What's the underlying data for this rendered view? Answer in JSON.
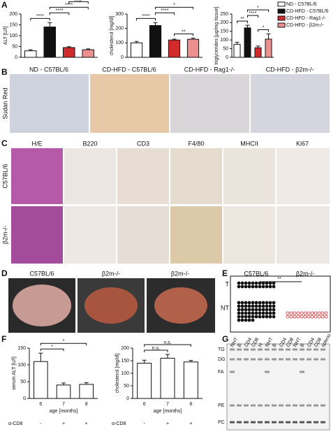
{
  "panels": [
    "A",
    "B",
    "C",
    "D",
    "E",
    "F",
    "G"
  ],
  "panel_b": {
    "labels": [
      "ND - C57BL/6",
      "CD-HFD - C57BL/6",
      "CD-HFD - Rag1-/-",
      "CD-HFD - β2m-/-"
    ],
    "side": "Sudan Red"
  },
  "panel_c": {
    "columns": [
      "H/E",
      "B220",
      "CD3",
      "F4/80",
      "MHCII",
      "Ki67"
    ],
    "rows": [
      "C57BL/6",
      "β2m-/-"
    ]
  },
  "panel_d": {
    "labels": [
      "C57BL/6",
      "β2m-/-",
      "β2m-/-"
    ]
  },
  "panel_g": {
    "lipids": [
      "TG",
      "DG",
      "FA",
      "PE",
      "PC"
    ],
    "lanes": [
      "NHT",
      "B",
      "CD4",
      "CD8",
      "H",
      "NHT",
      "B",
      "CD4",
      "CD8",
      "NHT",
      "B",
      "CD4",
      "CD8",
      "spleno"
    ]
  },
  "chart_data": [
    {
      "type": "bar",
      "ylabel": "ALT [U/l]",
      "values": [
        30,
        140,
        45,
        35
      ],
      "errors": [
        5,
        20,
        4,
        4
      ],
      "colors": [
        "#ffffff",
        "#111111",
        "#d22b2b",
        "#ec8f8f"
      ],
      "ylim": [
        0,
        200
      ],
      "yticks": [
        0,
        50,
        100,
        150,
        200
      ],
      "annotations": [
        {
          "text": "****",
          "between": [
            0,
            1
          ]
        },
        {
          "text": "****",
          "between": [
            1,
            2
          ]
        },
        {
          "text": "****",
          "between": [
            1,
            3
          ]
        },
        {
          "text": "n.s.",
          "between": [
            2,
            3
          ]
        }
      ],
      "legend": [
        {
          "name": "ND - C57BL/6",
          "color": "#ffffff"
        },
        {
          "name": "CD-HFD - C57BL/6",
          "color": "#111111"
        },
        {
          "name": "CD-HFD - Rag1-/-",
          "color": "#d22b2b"
        },
        {
          "name": "CD-HFD - β2m-/-",
          "color": "#ec8f8f"
        }
      ]
    },
    {
      "type": "bar",
      "ylabel": "cholesterol [mg/dl]",
      "values": [
        100,
        220,
        120,
        125
      ],
      "errors": [
        10,
        20,
        6,
        8
      ],
      "colors": [
        "#ffffff",
        "#111111",
        "#d22b2b",
        "#ec8f8f"
      ],
      "ylim": [
        0,
        300
      ],
      "yticks": [
        0,
        100,
        200,
        300
      ],
      "annotations": [
        {
          "text": "**",
          "between": [
            2,
            3
          ]
        },
        {
          "text": "****",
          "between": [
            0,
            1
          ]
        },
        {
          "text": "****",
          "between": [
            1,
            2
          ]
        },
        {
          "text": "*",
          "between": [
            1,
            3
          ]
        }
      ]
    },
    {
      "type": "bar",
      "ylabel": "triglycerides [µg/mg tissue]",
      "values": [
        75,
        170,
        55,
        105
      ],
      "errors": [
        12,
        15,
        10,
        30
      ],
      "colors": [
        "#ffffff",
        "#111111",
        "#d22b2b",
        "#ec8f8f"
      ],
      "ylim": [
        0,
        250
      ],
      "yticks": [
        0,
        50,
        100,
        150,
        200,
        250
      ],
      "annotations": [
        {
          "text": "*",
          "between": [
            2,
            3
          ]
        },
        {
          "text": "**",
          "between": [
            0,
            1
          ]
        },
        {
          "text": "****",
          "between": [
            1,
            2
          ]
        },
        {
          "text": "*",
          "between": [
            1,
            3
          ]
        }
      ]
    },
    {
      "type": "bar",
      "ylabel": "serum ALT [U/l]",
      "categories": [
        "6",
        "7",
        "8"
      ],
      "values": [
        110,
        40,
        42
      ],
      "errors": [
        25,
        6,
        5
      ],
      "colors": [
        "#ffffff",
        "#ffffff",
        "#ffffff"
      ],
      "ylim": [
        0,
        150
      ],
      "yticks": [
        0,
        50,
        100,
        150
      ],
      "xlabel": "age [months]",
      "treatment_label": "α-CD8",
      "treatment": [
        "-",
        "+",
        "+"
      ],
      "annotations": [
        {
          "text": "*",
          "between": [
            0,
            1
          ]
        },
        {
          "text": "*",
          "between": [
            0,
            2
          ]
        }
      ]
    },
    {
      "type": "bar",
      "ylabel": "cholesterol [mg/dl]",
      "categories": [
        "6",
        "7",
        "8"
      ],
      "values": [
        140,
        160,
        145
      ],
      "errors": [
        12,
        15,
        6
      ],
      "colors": [
        "#ffffff",
        "#ffffff",
        "#ffffff"
      ],
      "ylim": [
        0,
        200
      ],
      "yticks": [
        0,
        50,
        100,
        150,
        200
      ],
      "xlabel": "age [months]",
      "treatment_label": "α-CD8",
      "treatment": [
        "-",
        "+",
        "+"
      ],
      "annotations": [
        {
          "text": "n.s.",
          "between": [
            0,
            1
          ]
        },
        {
          "text": "n.s.",
          "between": [
            0,
            2
          ]
        }
      ]
    },
    {
      "type": "dot",
      "categories": [
        "C57BL/6",
        "β2m-/-"
      ],
      "colors": [
        "#111111",
        "#d22b2b"
      ],
      "series": [
        {
          "name": "T",
          "values": [
            22,
            0
          ]
        },
        {
          "name": "NT",
          "values": [
            60,
            24
          ]
        }
      ],
      "annotations": [
        {
          "text": "**",
          "between": [
            0,
            1
          ]
        }
      ]
    }
  ]
}
